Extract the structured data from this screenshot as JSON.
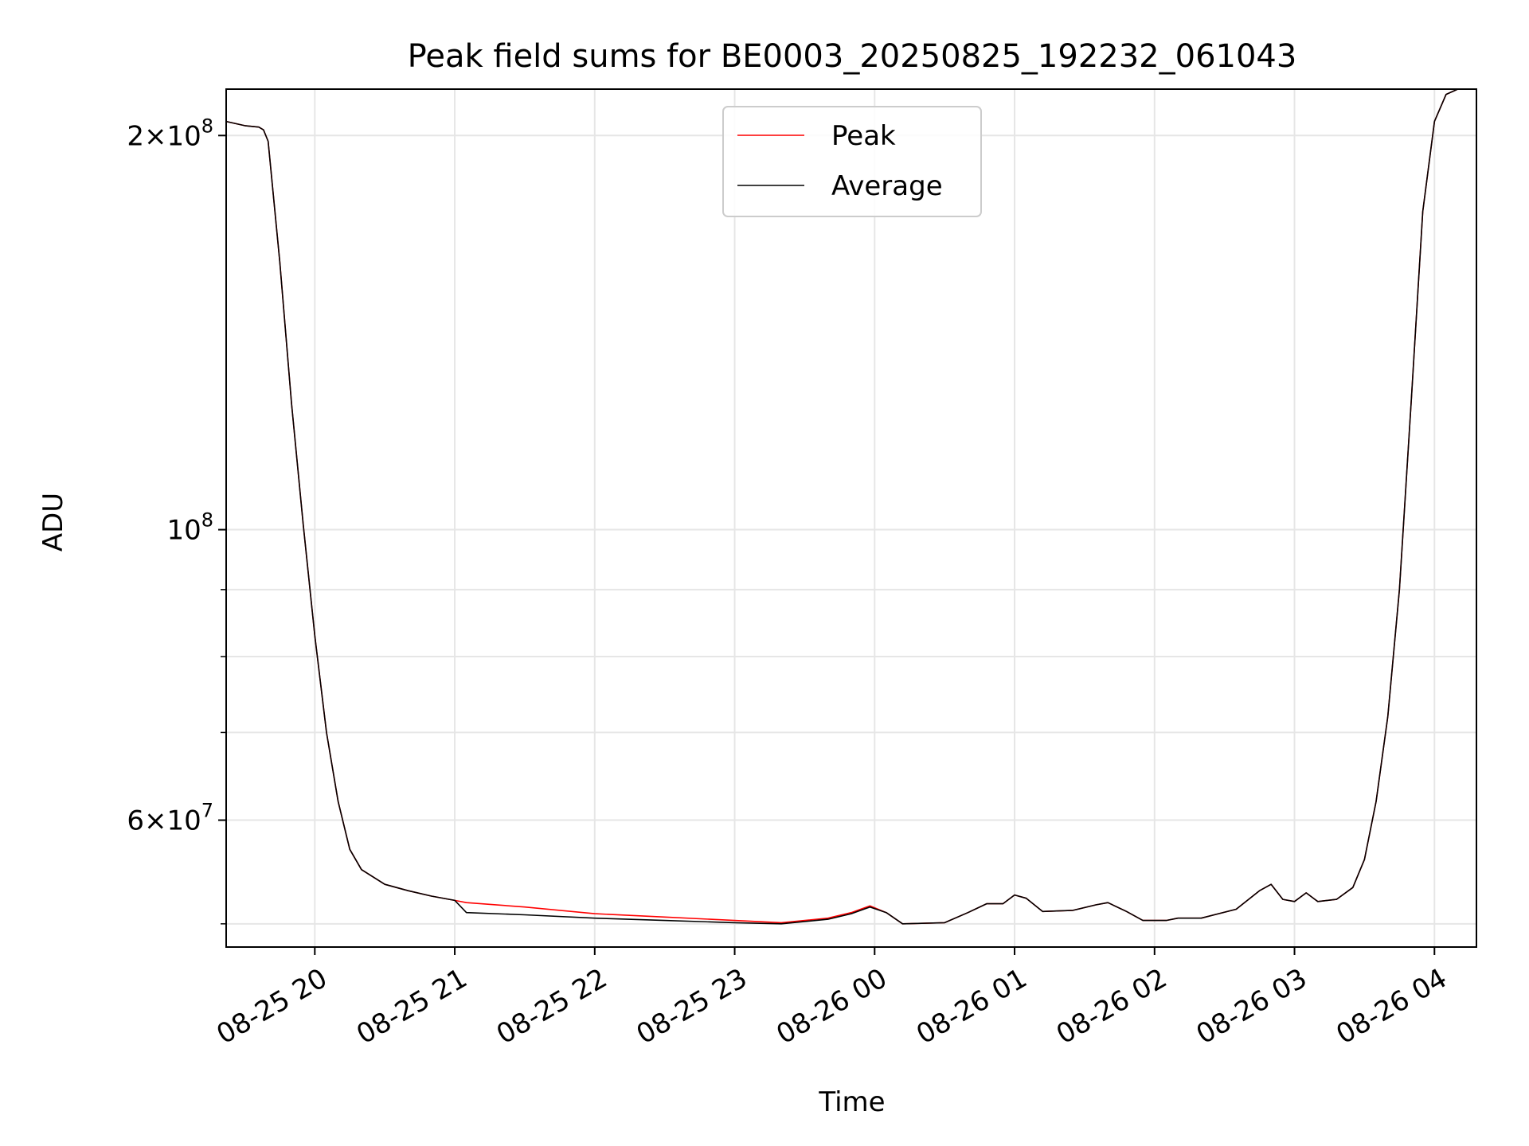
{
  "chart_data": {
    "type": "line",
    "title": "Peak field sums for BE0003_20250825_192232_061043",
    "xlabel": "Time",
    "ylabel": "ADU",
    "x_ticks": [
      "08-25 20",
      "08-25 21",
      "08-25 22",
      "08-25 23",
      "08-26 00",
      "08-26 01",
      "08-26 02",
      "08-26 03",
      "08-26 04"
    ],
    "y_ticks": [
      {
        "value": 200000000,
        "mant": "2",
        "exp": "8"
      },
      {
        "value": 100000000,
        "mant": "",
        "exp": "8"
      },
      {
        "value": 60000000,
        "mant": "6",
        "exp": "7"
      }
    ],
    "y_scale": "log",
    "ylim": [
      48000000,
      217000000
    ],
    "xlim": [
      "2025-08-25 19:22",
      "2025-08-26 04:18"
    ],
    "grid": true,
    "legend_position": "upper center",
    "series": [
      {
        "name": "Peak",
        "color": "#ff0000",
        "points": [
          [
            "2025-08-25 19:22",
            205000000
          ],
          [
            "2025-08-25 19:30",
            203500000
          ],
          [
            "2025-08-25 19:36",
            203000000
          ],
          [
            "2025-08-25 19:38",
            202000000
          ],
          [
            "2025-08-25 19:40",
            198000000
          ],
          [
            "2025-08-25 19:45",
            160000000
          ],
          [
            "2025-08-25 19:50",
            125000000
          ],
          [
            "2025-08-25 19:55",
            101000000
          ],
          [
            "2025-08-25 20:00",
            83000000
          ],
          [
            "2025-08-25 20:05",
            70000000
          ],
          [
            "2025-08-25 20:10",
            62000000
          ],
          [
            "2025-08-25 20:15",
            57000000
          ],
          [
            "2025-08-25 20:20",
            55000000
          ],
          [
            "2025-08-25 20:30",
            53600000
          ],
          [
            "2025-08-25 20:40",
            53000000
          ],
          [
            "2025-08-25 20:50",
            52500000
          ],
          [
            "2025-08-25 21:00",
            52100000
          ],
          [
            "2025-08-25 21:05",
            51900000
          ],
          [
            "2025-08-25 21:30",
            51500000
          ],
          [
            "2025-08-25 22:00",
            50900000
          ],
          [
            "2025-08-25 22:30",
            50600000
          ],
          [
            "2025-08-25 23:00",
            50300000
          ],
          [
            "2025-08-25 23:20",
            50100000
          ],
          [
            "2025-08-25 23:40",
            50500000
          ],
          [
            "2025-08-25 23:50",
            51000000
          ],
          [
            "2025-08-25 23:58",
            51600000
          ],
          [
            "2025-08-26 00:05",
            51000000
          ],
          [
            "2025-08-26 00:12",
            50000000
          ],
          [
            "2025-08-26 00:30",
            50100000
          ],
          [
            "2025-08-26 00:40",
            51000000
          ],
          [
            "2025-08-26 00:48",
            51800000
          ],
          [
            "2025-08-26 00:55",
            51800000
          ],
          [
            "2025-08-26 01:00",
            52600000
          ],
          [
            "2025-08-26 01:05",
            52300000
          ],
          [
            "2025-08-26 01:12",
            51100000
          ],
          [
            "2025-08-26 01:25",
            51200000
          ],
          [
            "2025-08-26 01:35",
            51700000
          ],
          [
            "2025-08-26 01:40",
            51900000
          ],
          [
            "2025-08-26 01:48",
            51100000
          ],
          [
            "2025-08-26 01:55",
            50300000
          ],
          [
            "2025-08-26 02:05",
            50300000
          ],
          [
            "2025-08-26 02:10",
            50500000
          ],
          [
            "2025-08-26 02:20",
            50500000
          ],
          [
            "2025-08-26 02:35",
            51300000
          ],
          [
            "2025-08-26 02:45",
            53000000
          ],
          [
            "2025-08-26 02:50",
            53600000
          ],
          [
            "2025-08-26 02:55",
            52200000
          ],
          [
            "2025-08-26 03:00",
            52000000
          ],
          [
            "2025-08-26 03:05",
            52800000
          ],
          [
            "2025-08-26 03:10",
            52000000
          ],
          [
            "2025-08-26 03:18",
            52200000
          ],
          [
            "2025-08-26 03:25",
            53300000
          ],
          [
            "2025-08-26 03:30",
            56000000
          ],
          [
            "2025-08-26 03:35",
            62000000
          ],
          [
            "2025-08-26 03:40",
            72000000
          ],
          [
            "2025-08-26 03:45",
            90000000
          ],
          [
            "2025-08-26 03:50",
            125000000
          ],
          [
            "2025-08-26 03:55",
            175000000
          ],
          [
            "2025-08-26 04:00",
            205000000
          ],
          [
            "2025-08-26 04:05",
            215000000
          ],
          [
            "2025-08-26 04:10",
            217000000
          ]
        ]
      },
      {
        "name": "Average",
        "color": "#000000",
        "points": [
          [
            "2025-08-25 19:22",
            205000000
          ],
          [
            "2025-08-25 19:30",
            203500000
          ],
          [
            "2025-08-25 19:36",
            203000000
          ],
          [
            "2025-08-25 19:38",
            202000000
          ],
          [
            "2025-08-25 19:40",
            198000000
          ],
          [
            "2025-08-25 19:45",
            160000000
          ],
          [
            "2025-08-25 19:50",
            125000000
          ],
          [
            "2025-08-25 19:55",
            101000000
          ],
          [
            "2025-08-25 20:00",
            83000000
          ],
          [
            "2025-08-25 20:05",
            70000000
          ],
          [
            "2025-08-25 20:10",
            62000000
          ],
          [
            "2025-08-25 20:15",
            57000000
          ],
          [
            "2025-08-25 20:20",
            55000000
          ],
          [
            "2025-08-25 20:30",
            53600000
          ],
          [
            "2025-08-25 20:40",
            53000000
          ],
          [
            "2025-08-25 20:50",
            52500000
          ],
          [
            "2025-08-25 21:00",
            52100000
          ],
          [
            "2025-08-25 21:05",
            51000000
          ],
          [
            "2025-08-25 21:30",
            50800000
          ],
          [
            "2025-08-25 22:00",
            50500000
          ],
          [
            "2025-08-25 22:30",
            50300000
          ],
          [
            "2025-08-25 23:00",
            50100000
          ],
          [
            "2025-08-25 23:20",
            50000000
          ],
          [
            "2025-08-25 23:40",
            50400000
          ],
          [
            "2025-08-25 23:50",
            50900000
          ],
          [
            "2025-08-25 23:58",
            51500000
          ],
          [
            "2025-08-26 00:05",
            51000000
          ],
          [
            "2025-08-26 00:12",
            50000000
          ],
          [
            "2025-08-26 00:30",
            50100000
          ],
          [
            "2025-08-26 00:40",
            51000000
          ],
          [
            "2025-08-26 00:48",
            51800000
          ],
          [
            "2025-08-26 00:55",
            51800000
          ],
          [
            "2025-08-26 01:00",
            52600000
          ],
          [
            "2025-08-26 01:05",
            52300000
          ],
          [
            "2025-08-26 01:12",
            51100000
          ],
          [
            "2025-08-26 01:25",
            51200000
          ],
          [
            "2025-08-26 01:35",
            51700000
          ],
          [
            "2025-08-26 01:40",
            51900000
          ],
          [
            "2025-08-26 01:48",
            51100000
          ],
          [
            "2025-08-26 01:55",
            50300000
          ],
          [
            "2025-08-26 02:05",
            50300000
          ],
          [
            "2025-08-26 02:10",
            50500000
          ],
          [
            "2025-08-26 02:20",
            50500000
          ],
          [
            "2025-08-26 02:35",
            51300000
          ],
          [
            "2025-08-26 02:45",
            53000000
          ],
          [
            "2025-08-26 02:50",
            53600000
          ],
          [
            "2025-08-26 02:55",
            52200000
          ],
          [
            "2025-08-26 03:00",
            52000000
          ],
          [
            "2025-08-26 03:05",
            52800000
          ],
          [
            "2025-08-26 03:10",
            52000000
          ],
          [
            "2025-08-26 03:18",
            52200000
          ],
          [
            "2025-08-26 03:25",
            53300000
          ],
          [
            "2025-08-26 03:30",
            56000000
          ],
          [
            "2025-08-26 03:35",
            62000000
          ],
          [
            "2025-08-26 03:40",
            72000000
          ],
          [
            "2025-08-26 03:45",
            90000000
          ],
          [
            "2025-08-26 03:50",
            125000000
          ],
          [
            "2025-08-26 03:55",
            175000000
          ],
          [
            "2025-08-26 04:00",
            205000000
          ],
          [
            "2025-08-26 04:05",
            215000000
          ],
          [
            "2025-08-26 04:10",
            217000000
          ]
        ]
      }
    ]
  }
}
